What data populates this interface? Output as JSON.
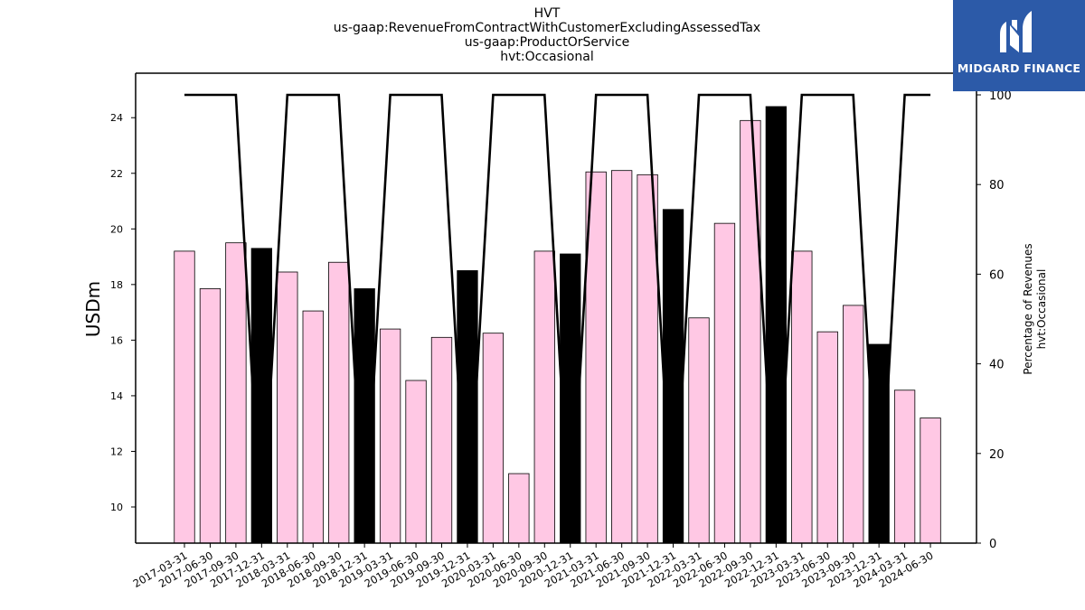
{
  "chart_data": {
    "type": "bar",
    "title_lines": [
      "HVT",
      "us-gaap:RevenueFromContractWithCustomerExcludingAssessedTax",
      "us-gaap:ProductOrService",
      "hvt:Occasional"
    ],
    "ylabel": "USDm",
    "y2label_lines": [
      "Percentage of Revenues",
      "hvt:Occasional"
    ],
    "categories": [
      "2017-03-31",
      "2017-06-30",
      "2017-09-30",
      "2017-12-31",
      "2018-03-31",
      "2018-06-30",
      "2018-09-30",
      "2018-12-31",
      "2019-03-31",
      "2019-06-30",
      "2019-09-30",
      "2019-12-31",
      "2020-03-31",
      "2020-06-30",
      "2020-09-30",
      "2020-12-31",
      "2021-03-31",
      "2021-06-30",
      "2021-09-30",
      "2021-12-31",
      "2022-03-31",
      "2022-06-30",
      "2022-09-30",
      "2022-12-31",
      "2023-03-31",
      "2023-06-30",
      "2023-09-30",
      "2023-12-31",
      "2024-03-31",
      "2024-06-30"
    ],
    "series": [
      {
        "axis": "left",
        "kind": "bar",
        "values": [
          19.2,
          17.85,
          19.5,
          19.3,
          18.45,
          17.05,
          18.8,
          17.85,
          16.4,
          14.55,
          16.1,
          18.5,
          16.25,
          11.2,
          19.2,
          19.1,
          22.05,
          22.1,
          21.95,
          20.7,
          16.8,
          20.2,
          23.9,
          24.4,
          19.2,
          16.3,
          17.25,
          15.85,
          14.2,
          13.2
        ]
      },
      {
        "axis": "right",
        "kind": "line",
        "values": [
          100,
          100,
          100,
          0,
          100,
          100,
          100,
          0,
          100,
          100,
          100,
          0,
          100,
          100,
          100,
          0,
          100,
          100,
          100,
          0,
          100,
          100,
          100,
          0,
          100,
          100,
          100,
          0,
          100,
          100
        ]
      }
    ],
    "ylim": [
      8.7,
      25.6
    ],
    "yticks": [
      10,
      12,
      14,
      16,
      18,
      20,
      22,
      24
    ],
    "y2lim": [
      0,
      100
    ],
    "y2ticks": [
      0,
      20,
      40,
      60,
      80,
      100
    ],
    "grid": false,
    "colors": {
      "bar_default": "#ffc8e4",
      "bar_q4": "#000000",
      "bar_edge": "#000000",
      "line": "#000000"
    }
  },
  "logo": {
    "text": "MIDGARD FINANCE",
    "background": "#2c5aa8"
  }
}
